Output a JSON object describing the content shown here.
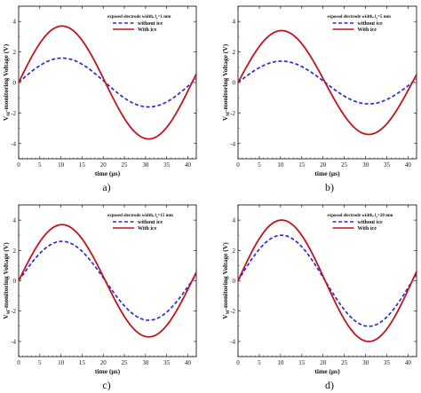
{
  "chart_data": [
    {
      "type": "line",
      "panel_label": "a)",
      "legend_title": "exposed electrode width, l",
      "legend_sub": "e",
      "legend_value": "=1 mm",
      "xlabel": "time (μs)",
      "ylabel": "V",
      "ylabel_sub": "M",
      "ylabel_rest": "-monitoring Voltage (V)",
      "xlim": [
        0,
        42
      ],
      "ylim": [
        -5,
        5
      ],
      "xticks": [
        0,
        5,
        10,
        15,
        20,
        25,
        30,
        35,
        40
      ],
      "yticks": [
        -4,
        -2,
        0,
        2,
        4
      ],
      "series": [
        {
          "name": "without ice",
          "style": "dashed",
          "color": "#2a2ad8",
          "amplitude": 1.6,
          "period": 41,
          "offset": 0
        },
        {
          "name": "With ice",
          "style": "solid",
          "color": "#c0141c",
          "amplitude": 3.7,
          "period": 41,
          "offset": 0
        }
      ]
    },
    {
      "type": "line",
      "panel_label": "b)",
      "legend_title": "exposed electrode width, l",
      "legend_sub": "e",
      "legend_value": "=5 mm",
      "xlabel": "time (μs)",
      "ylabel": "V",
      "ylabel_sub": "M",
      "ylabel_rest": "-monitoring Voltage (V)",
      "xlim": [
        0,
        42
      ],
      "ylim": [
        -5,
        5
      ],
      "xticks": [
        0,
        5,
        10,
        15,
        20,
        25,
        30,
        35,
        40
      ],
      "yticks": [
        -4,
        -2,
        0,
        2,
        4
      ],
      "series": [
        {
          "name": "without ice",
          "style": "dashed",
          "color": "#2a2ad8",
          "amplitude": 1.4,
          "period": 41,
          "offset": 0
        },
        {
          "name": "With ice",
          "style": "solid",
          "color": "#c0141c",
          "amplitude": 3.4,
          "period": 41,
          "offset": 0
        }
      ]
    },
    {
      "type": "line",
      "panel_label": "c)",
      "legend_title": "exposed electrode width, l",
      "legend_sub": "e",
      "legend_value": "=15 mm",
      "xlabel": "time (μs)",
      "ylabel": "V",
      "ylabel_sub": "M",
      "ylabel_rest": "-monitoring Voltage (V)",
      "xlim": [
        0,
        42
      ],
      "ylim": [
        -5,
        5
      ],
      "xticks": [
        0,
        5,
        10,
        15,
        20,
        25,
        30,
        35,
        40
      ],
      "yticks": [
        -4,
        -2,
        0,
        2,
        4
      ],
      "series": [
        {
          "name": "without ice",
          "style": "dashed",
          "color": "#2a2ad8",
          "amplitude": 2.6,
          "period": 41,
          "offset": 0
        },
        {
          "name": "With ice",
          "style": "solid",
          "color": "#c0141c",
          "amplitude": 3.7,
          "period": 41,
          "offset": 0
        }
      ]
    },
    {
      "type": "line",
      "panel_label": "d)",
      "legend_title": "exposed electrode width, l",
      "legend_sub": "e",
      "legend_value": "=20 mm",
      "xlabel": "time (μs)",
      "ylabel": "V",
      "ylabel_sub": "M",
      "ylabel_rest": "-monitoring Voltage (V)",
      "xlim": [
        0,
        42
      ],
      "ylim": [
        -5,
        5
      ],
      "xticks": [
        0,
        5,
        10,
        15,
        20,
        25,
        30,
        35,
        40
      ],
      "yticks": [
        -4,
        -2,
        0,
        2,
        4
      ],
      "series": [
        {
          "name": "without ice",
          "style": "dashed",
          "color": "#2a2ad8",
          "amplitude": 3.0,
          "period": 41,
          "offset": 0
        },
        {
          "name": "With ice",
          "style": "solid",
          "color": "#c0141c",
          "amplitude": 4.0,
          "period": 41,
          "offset": 0
        }
      ]
    }
  ]
}
